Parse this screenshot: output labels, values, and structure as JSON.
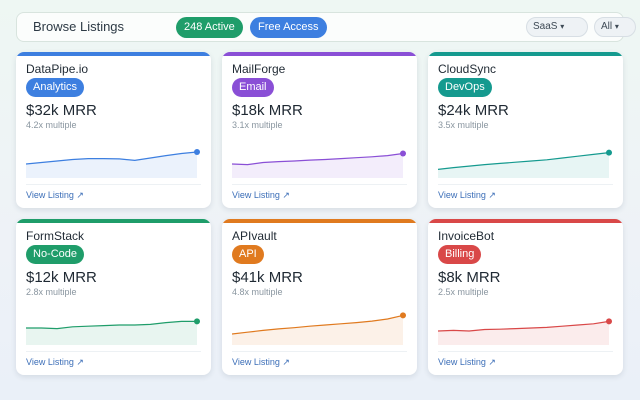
{
  "header": {
    "title": "Browse Listings",
    "active_badge": "248 Active",
    "access_badge": "Free Access",
    "filter_type": "SaaS",
    "filter_all": "All"
  },
  "listings": [
    {
      "name": "DataPipe.io",
      "category": "Analytics",
      "mrr": "$32k MRR",
      "multiple": "4.2x multiple",
      "link": "View Listing",
      "color": "#3d7fe0",
      "trend": [
        0.4,
        0.45,
        0.5,
        0.55,
        0.58,
        0.58,
        0.57,
        0.52,
        0.6,
        0.68,
        0.75,
        0.8
      ]
    },
    {
      "name": "MailForge",
      "category": "Email",
      "mrr": "$18k MRR",
      "multiple": "3.1x multiple",
      "link": "View Listing",
      "color": "#8a4fd6",
      "trend": [
        0.4,
        0.38,
        0.45,
        0.48,
        0.5,
        0.53,
        0.55,
        0.58,
        0.61,
        0.64,
        0.68,
        0.75
      ]
    },
    {
      "name": "CloudSync",
      "category": "DevOps",
      "mrr": "$24k MRR",
      "multiple": "3.5x multiple",
      "link": "View Listing",
      "color": "#159a8f",
      "trend": [
        0.22,
        0.28,
        0.33,
        0.38,
        0.42,
        0.46,
        0.5,
        0.54,
        0.6,
        0.66,
        0.72,
        0.78
      ]
    },
    {
      "name": "FormStack",
      "category": "No-Code",
      "mrr": "$12k MRR",
      "multiple": "2.8x multiple",
      "link": "View Listing",
      "color": "#1f9d6a",
      "trend": [
        0.5,
        0.5,
        0.48,
        0.54,
        0.56,
        0.58,
        0.6,
        0.6,
        0.62,
        0.68,
        0.72,
        0.72
      ]
    },
    {
      "name": "APIvault",
      "category": "API",
      "mrr": "$41k MRR",
      "multiple": "4.8x multiple",
      "link": "View Listing",
      "color": "#e07a1f",
      "trend": [
        0.3,
        0.36,
        0.42,
        0.47,
        0.51,
        0.56,
        0.6,
        0.64,
        0.68,
        0.73,
        0.8,
        0.92
      ]
    },
    {
      "name": "InvoiceBot",
      "category": "Billing",
      "mrr": "$8k MRR",
      "multiple": "2.5x multiple",
      "link": "View Listing",
      "color": "#d94848",
      "trend": [
        0.4,
        0.42,
        0.4,
        0.45,
        0.46,
        0.48,
        0.5,
        0.52,
        0.56,
        0.6,
        0.64,
        0.72
      ]
    }
  ]
}
